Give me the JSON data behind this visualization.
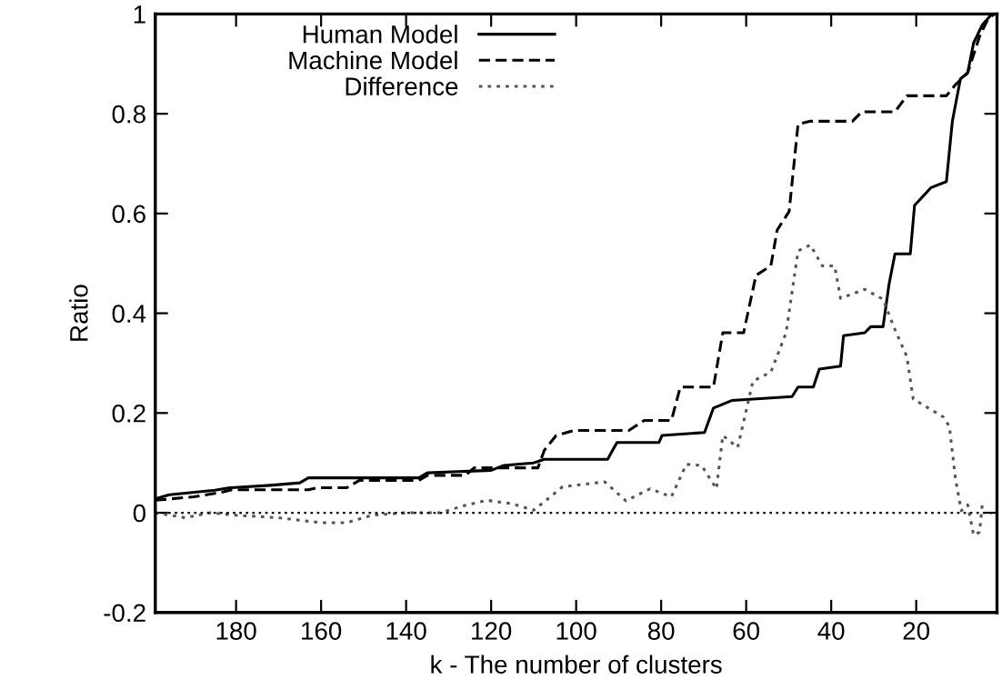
{
  "chart_data": {
    "type": "line",
    "xlabel": "k - The number of clusters",
    "ylabel": "Ratio",
    "xlim": [
      199,
      1
    ],
    "xticks": [
      180,
      160,
      140,
      120,
      100,
      80,
      60,
      40,
      20
    ],
    "ylim": [
      -0.2,
      1
    ],
    "yticks": [
      -0.2,
      0,
      0.2,
      0.4,
      0.6,
      0.8,
      1
    ],
    "grid": false,
    "legend": "top left",
    "ref_lines": [
      {
        "axis": "y",
        "value": 0,
        "label": null,
        "color": "#000000",
        "line_style": "dotted"
      }
    ],
    "series": [
      {
        "name": "Human Model",
        "color": "#000000",
        "line_style": "solid",
        "x": [
          199,
          195.7,
          185,
          181.5,
          172,
          165,
          163,
          137,
          135,
          120,
          117,
          110,
          107.5,
          92.6,
          90.4,
          80.5,
          79.8,
          69.8,
          67.7,
          63.4,
          49.2,
          47.8,
          44.2,
          42.8,
          37.8,
          37.1,
          32.1,
          30.7,
          27.8,
          26.4,
          25.0,
          21.4,
          20.4,
          16.5,
          12.9,
          11.5,
          9.6,
          7.9,
          6.5,
          4.4,
          2.2
        ],
        "values": [
          0.028,
          0.036,
          0.045,
          0.05,
          0.055,
          0.06,
          0.07,
          0.07,
          0.08,
          0.085,
          0.095,
          0.1,
          0.107,
          0.107,
          0.141,
          0.141,
          0.155,
          0.161,
          0.21,
          0.225,
          0.233,
          0.252,
          0.252,
          0.288,
          0.294,
          0.355,
          0.361,
          0.373,
          0.373,
          0.458,
          0.519,
          0.519,
          0.616,
          0.652,
          0.664,
          0.785,
          0.87,
          0.882,
          0.942,
          0.979,
          1.0
        ]
      },
      {
        "name": "Machine Model",
        "color": "#000000",
        "line_style": "dashed",
        "x": [
          199,
          190,
          184,
          181,
          163,
          161,
          154,
          151,
          137,
          135,
          126,
          124,
          109,
          107.5,
          104.7,
          100.4,
          87.6,
          84.0,
          77.6,
          75.5,
          67.7,
          65.5,
          60.6,
          57.7,
          54.2,
          52.7,
          49.9,
          47.8,
          44.9,
          35.0,
          32.8,
          25.0,
          22.2,
          12.9,
          10.8,
          7.9,
          5.1,
          3.0,
          1.5
        ],
        "values": [
          0.025,
          0.032,
          0.04,
          0.046,
          0.046,
          0.05,
          0.05,
          0.065,
          0.065,
          0.075,
          0.075,
          0.09,
          0.09,
          0.125,
          0.155,
          0.165,
          0.165,
          0.185,
          0.185,
          0.252,
          0.252,
          0.361,
          0.361,
          0.476,
          0.495,
          0.567,
          0.604,
          0.779,
          0.785,
          0.785,
          0.804,
          0.804,
          0.836,
          0.836,
          0.858,
          0.882,
          0.955,
          0.992,
          1.0
        ]
      },
      {
        "name": "Difference",
        "color": "#555555",
        "line_style": "dotted",
        "x": [
          199,
          192,
          186,
          180,
          170,
          160,
          154,
          148,
          140,
          132,
          126,
          121,
          115,
          110,
          107.5,
          103.2,
          93.3,
          88.3,
          82.6,
          77.6,
          74.1,
          70.5,
          67,
          65.5,
          62,
          58.4,
          54.2,
          50.6,
          47.8,
          44.9,
          42.1,
          39.2,
          37.8,
          32.1,
          27.8,
          25,
          22.2,
          20.7,
          13.6,
          12.2,
          10.8,
          9.4,
          7.9,
          6.5,
          5.1,
          4.4
        ],
        "values": [
          0,
          -0.01,
          0,
          -0.005,
          -0.01,
          -0.02,
          -0.02,
          -0.005,
          0,
          0,
          0.015,
          0.025,
          0.018,
          0.005,
          0.022,
          0.052,
          0.062,
          0.024,
          0.048,
          0.032,
          0.097,
          0.095,
          0.048,
          0.155,
          0.131,
          0.264,
          0.282,
          0.361,
          0.525,
          0.537,
          0.495,
          0.495,
          0.43,
          0.448,
          0.428,
          0.367,
          0.313,
          0.228,
          0.192,
          0.173,
          0.07,
          0.004,
          0.016,
          -0.045,
          -0.039,
          0.022
        ]
      }
    ]
  }
}
